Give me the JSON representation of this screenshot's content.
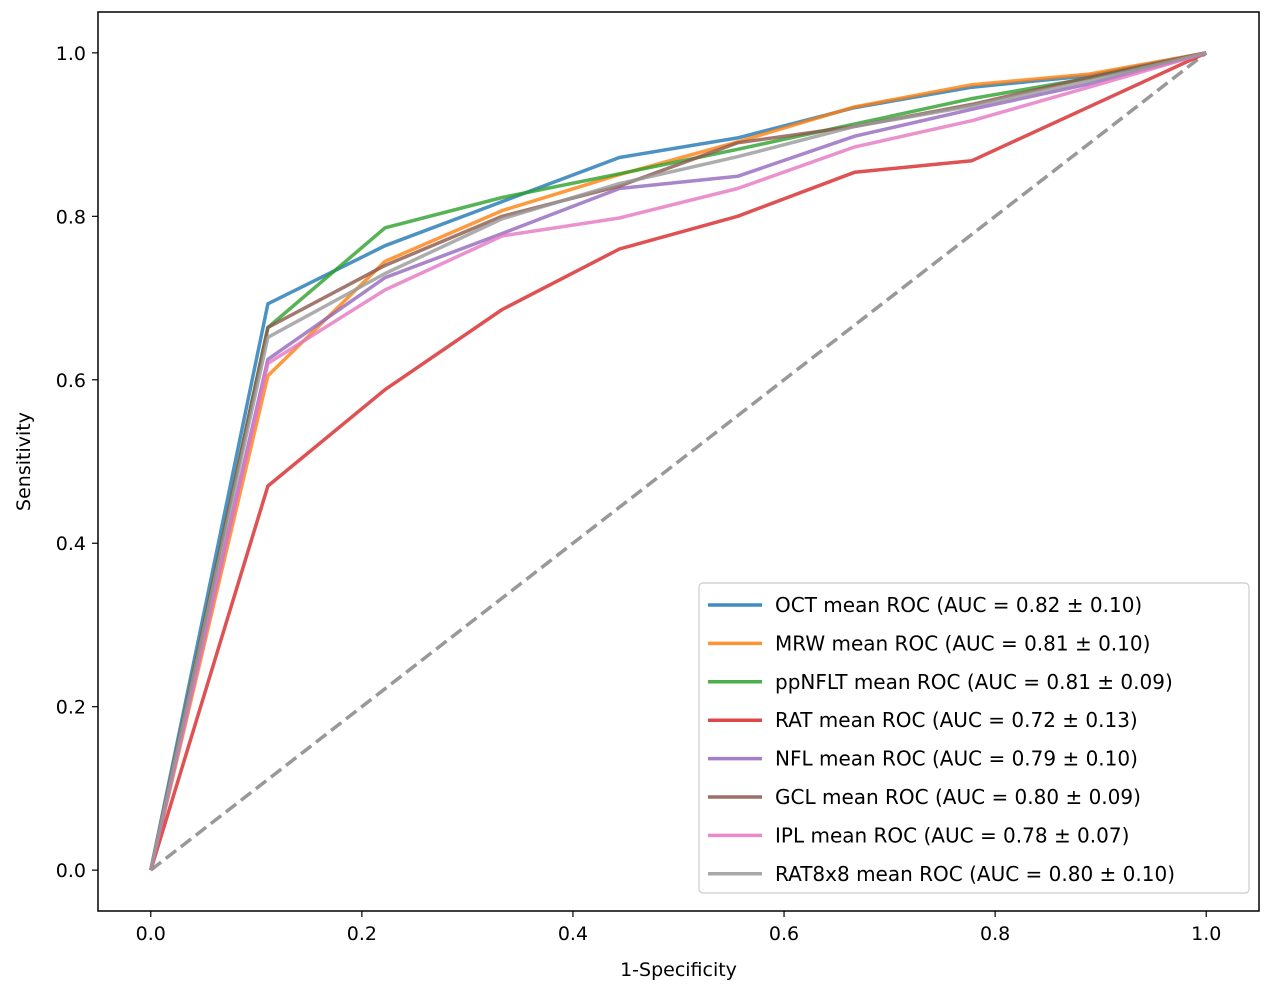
{
  "chart_data": {
    "type": "line",
    "title": "",
    "xlabel": "1-Specificity",
    "ylabel": "Sensitivity",
    "xlim": [
      -0.05,
      1.05
    ],
    "ylim": [
      -0.05,
      1.05
    ],
    "xticks": [
      0.0,
      0.2,
      0.4,
      0.6,
      0.8,
      1.0
    ],
    "yticks": [
      0.0,
      0.2,
      0.4,
      0.6,
      0.8,
      1.0
    ],
    "xtick_labels": [
      "0.0",
      "0.2",
      "0.4",
      "0.6",
      "0.8",
      "1.0"
    ],
    "ytick_labels": [
      "0.0",
      "0.2",
      "0.4",
      "0.6",
      "0.8",
      "1.0"
    ],
    "legend_position": "lower-right",
    "x": [
      0,
      0.111,
      0.222,
      0.333,
      0.444,
      0.556,
      0.667,
      0.778,
      0.889,
      1.0
    ],
    "chance_line": {
      "x": [
        0,
        1
      ],
      "y": [
        0,
        1
      ],
      "color": "#999999",
      "style": "dashed"
    },
    "series": [
      {
        "name": "OCT mean ROC (AUC = 0.82 ± 0.10)",
        "color": "#1f77b4",
        "values": [
          0,
          0.693,
          0.764,
          0.818,
          0.872,
          0.896,
          0.933,
          0.958,
          0.972,
          1.0
        ]
      },
      {
        "name": "MRW mean ROC (AUC = 0.81 ± 0.10)",
        "color": "#ff7f0e",
        "values": [
          0,
          0.605,
          0.745,
          0.807,
          0.851,
          0.891,
          0.934,
          0.961,
          0.974,
          1.0
        ]
      },
      {
        "name": "ppNFLT mean ROC (AUC = 0.81 ± 0.09)",
        "color": "#2ca02c",
        "values": [
          0,
          0.664,
          0.786,
          0.823,
          0.852,
          0.882,
          0.913,
          0.944,
          0.969,
          1.0
        ]
      },
      {
        "name": "RAT mean ROC (AUC = 0.72 ± 0.13)",
        "color": "#d62728",
        "values": [
          0,
          0.47,
          0.588,
          0.686,
          0.76,
          0.8,
          0.854,
          0.868,
          0.934,
          1.0
        ]
      },
      {
        "name": "NFL mean ROC (AUC = 0.79 ± 0.10)",
        "color": "#9467bd",
        "values": [
          0,
          0.625,
          0.725,
          0.779,
          0.834,
          0.849,
          0.898,
          0.931,
          0.962,
          1.0
        ]
      },
      {
        "name": "GCL mean ROC (AUC = 0.80 ± 0.09)",
        "color": "#8c564b",
        "values": [
          0,
          0.664,
          0.74,
          0.8,
          0.837,
          0.89,
          0.91,
          0.937,
          0.97,
          1.0
        ]
      },
      {
        "name": "IPL mean ROC (AUC = 0.78 ± 0.07)",
        "color": "#e377c2",
        "values": [
          0,
          0.62,
          0.71,
          0.776,
          0.798,
          0.834,
          0.885,
          0.917,
          0.958,
          1.0
        ]
      },
      {
        "name": "RAT8x8 mean ROC (AUC = 0.80 ± 0.10)",
        "color": "#999999",
        "values": [
          0,
          0.652,
          0.73,
          0.797,
          0.84,
          0.873,
          0.91,
          0.935,
          0.966,
          1.0
        ]
      }
    ]
  }
}
